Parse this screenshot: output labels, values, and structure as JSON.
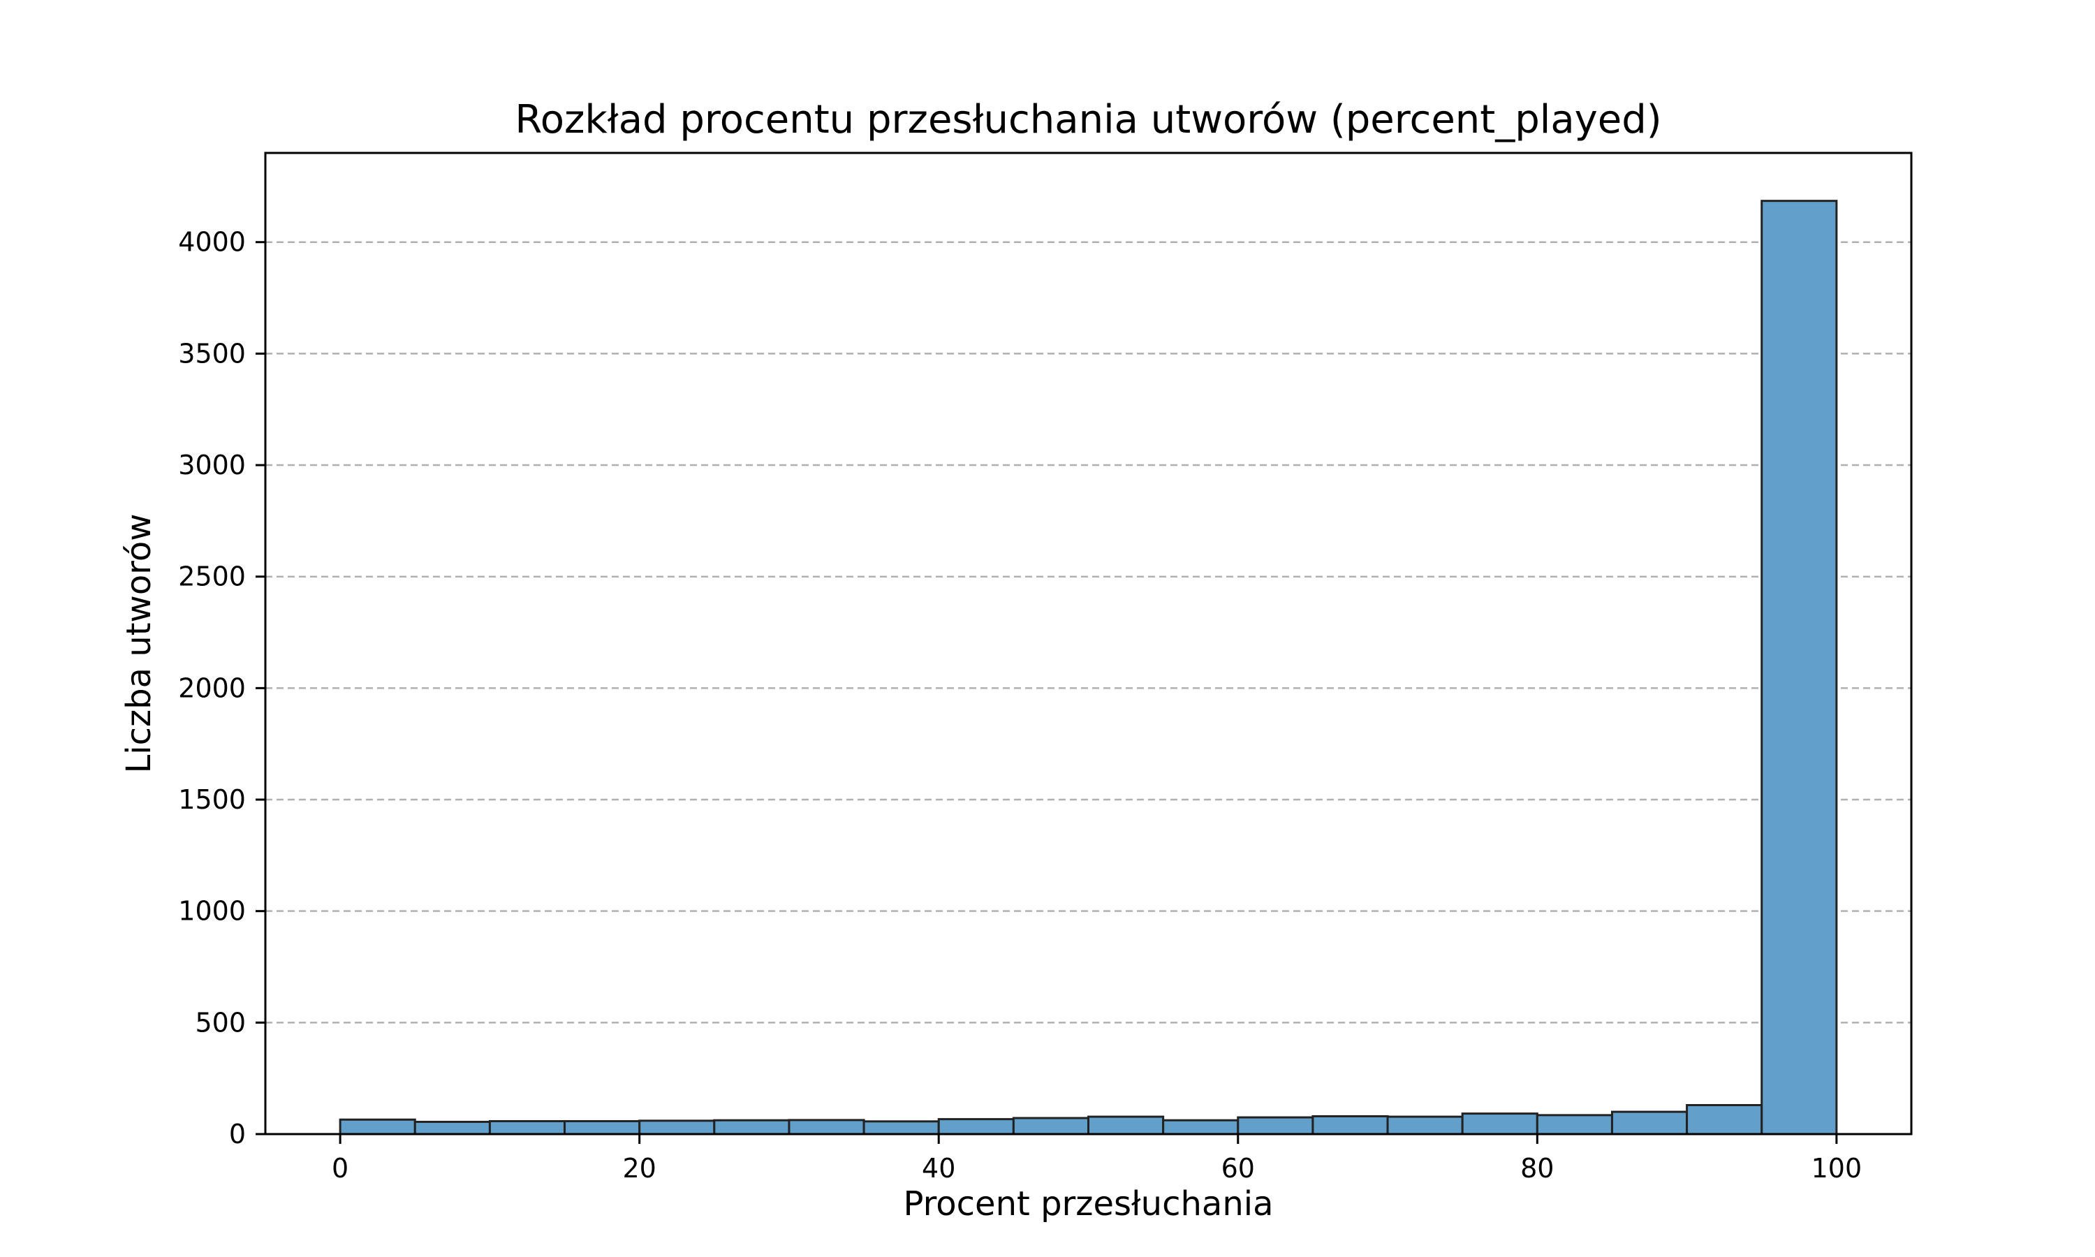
{
  "chart_data": {
    "type": "bar",
    "title": "Rozkład procentu przesłuchania utworów (percent_played)",
    "xlabel": "Procent przesłuchania",
    "ylabel": "Liczba utworów",
    "bin_edges": [
      0,
      5,
      10,
      15,
      20,
      25,
      30,
      35,
      40,
      45,
      50,
      55,
      60,
      65,
      70,
      75,
      80,
      85,
      90,
      95,
      100
    ],
    "values": [
      65,
      55,
      58,
      58,
      60,
      62,
      63,
      57,
      67,
      72,
      78,
      62,
      75,
      80,
      78,
      92,
      85,
      100,
      130,
      4185
    ],
    "xlim": [
      -5,
      105
    ],
    "ylim": [
      0,
      4400
    ],
    "xticks": [
      0,
      20,
      40,
      60,
      80,
      100
    ],
    "yticks": [
      0,
      500,
      1000,
      1500,
      2000,
      2500,
      3000,
      3500,
      4000
    ],
    "grid": "y-dashed",
    "bar_color": "#62a0cb",
    "edge_color": "#222222"
  }
}
